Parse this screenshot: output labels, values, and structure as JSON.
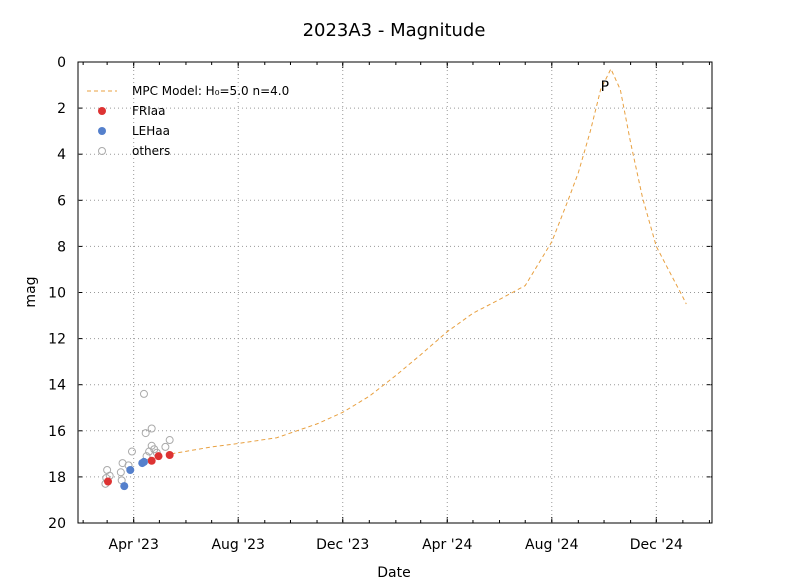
{
  "chart_data": {
    "type": "scatter",
    "title": "2023A3 - Magnitude",
    "x_label": "Date",
    "y_label": "mag",
    "xlim": [
      "2023-01-26",
      "2025-02-04"
    ],
    "ylim": [
      20,
      0
    ],
    "xticks": [
      {
        "value": "2023-04-01",
        "label": "Apr '23"
      },
      {
        "value": "2023-08-01",
        "label": "Aug '23"
      },
      {
        "value": "2023-12-01",
        "label": "Dec '23"
      },
      {
        "value": "2024-04-01",
        "label": "Apr '24"
      },
      {
        "value": "2024-08-01",
        "label": "Aug '24"
      },
      {
        "value": "2024-12-01",
        "label": "Dec '24"
      }
    ],
    "yticks": [
      0,
      2,
      4,
      6,
      8,
      10,
      12,
      14,
      16,
      18,
      20
    ],
    "grid": true,
    "legend": "upper left",
    "annotation": "P",
    "series": [
      {
        "name": "MPC Model: H₀=5.0 n=4.0",
        "style": "dashed-line",
        "color": "#e8a040",
        "x": [
          "2023-05-15",
          "2023-07-01",
          "2023-08-01",
          "2023-09-15",
          "2023-11-01",
          "2023-12-01",
          "2024-01-01",
          "2024-02-01",
          "2024-03-01",
          "2024-04-01",
          "2024-05-01",
          "2024-06-01",
          "2024-07-01",
          "2024-08-01",
          "2024-08-20",
          "2024-09-01",
          "2024-09-15",
          "2024-09-27",
          "2024-10-09",
          "2024-10-20",
          "2024-11-01",
          "2024-11-15",
          "2024-12-01",
          "2024-12-15",
          "2025-01-01",
          "2025-01-05"
        ],
        "values": [
          17.0,
          16.7,
          16.55,
          16.3,
          15.7,
          15.2,
          14.5,
          13.6,
          12.7,
          11.7,
          10.9,
          10.3,
          9.7,
          7.8,
          6.0,
          4.8,
          3.0,
          1.2,
          0.3,
          1.2,
          3.5,
          5.9,
          8.0,
          9.0,
          10.2,
          10.5
        ]
      },
      {
        "name": "FRIaa",
        "style": "filled-dot",
        "color": "#dd3333",
        "x": [
          "2023-03-02",
          "2023-04-22",
          "2023-04-30",
          "2023-05-13"
        ],
        "values": [
          18.2,
          17.3,
          17.1,
          17.05
        ]
      },
      {
        "name": "LEHaa",
        "style": "filled-dot",
        "color": "#5580cc",
        "x": [
          "2023-03-21",
          "2023-03-28",
          "2023-04-11",
          "2023-04-13"
        ],
        "values": [
          18.4,
          17.7,
          17.4,
          17.35
        ]
      },
      {
        "name": "others",
        "style": "open-dot",
        "color": "#aaaaaa",
        "x": [
          "2023-02-28",
          "2023-02-27",
          "2023-03-01",
          "2023-03-04",
          "2023-03-17",
          "2023-03-19",
          "2023-03-18",
          "2023-03-26",
          "2023-03-30",
          "2023-04-13",
          "2023-04-15",
          "2023-04-22",
          "2023-04-22",
          "2023-04-16",
          "2023-04-25",
          "2023-04-19",
          "2023-05-08",
          "2023-05-13",
          "2023-04-28"
        ],
        "values": [
          18.05,
          18.3,
          17.7,
          17.95,
          17.8,
          17.4,
          18.15,
          17.5,
          16.9,
          14.4,
          16.1,
          15.9,
          16.65,
          17.1,
          16.8,
          16.9,
          16.7,
          16.4,
          16.95
        ]
      }
    ]
  }
}
